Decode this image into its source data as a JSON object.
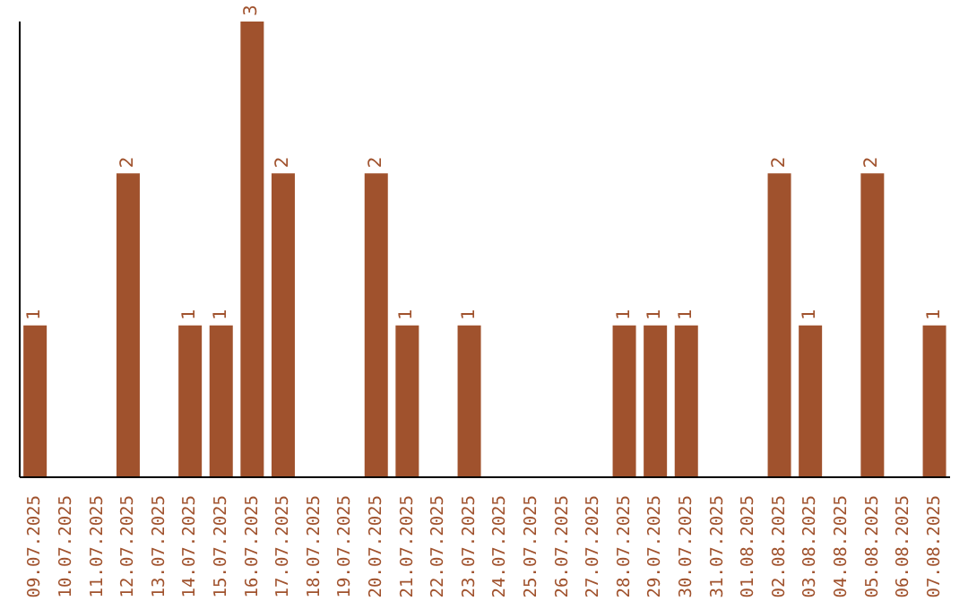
{
  "chart_data": {
    "type": "bar",
    "categories": [
      "09.07.2025",
      "10.07.2025",
      "11.07.2025",
      "12.07.2025",
      "13.07.2025",
      "14.07.2025",
      "15.07.2025",
      "16.07.2025",
      "17.07.2025",
      "18.07.2025",
      "19.07.2025",
      "20.07.2025",
      "21.07.2025",
      "22.07.2025",
      "23.07.2025",
      "24.07.2025",
      "25.07.2025",
      "26.07.2025",
      "27.07.2025",
      "28.07.2025",
      "29.07.2025",
      "30.07.2025",
      "31.07.2025",
      "01.08.2025",
      "02.08.2025",
      "03.08.2025",
      "04.08.2025",
      "05.08.2025",
      "06.08.2025",
      "07.08.2025"
    ],
    "values": [
      1,
      0,
      0,
      2,
      0,
      1,
      1,
      3,
      2,
      0,
      0,
      2,
      1,
      0,
      1,
      0,
      0,
      0,
      0,
      1,
      1,
      1,
      0,
      0,
      2,
      1,
      0,
      2,
      0,
      1
    ],
    "value_labels": [
      "1",
      null,
      null,
      "2",
      null,
      "1",
      "1",
      "3",
      "2",
      null,
      null,
      "2",
      "1",
      null,
      "1",
      null,
      null,
      null,
      null,
      "1",
      "1",
      "1",
      null,
      null,
      "2",
      "1",
      null,
      "2",
      null,
      "1"
    ],
    "color": "#a0522d",
    "tick_labels": "x"
  }
}
